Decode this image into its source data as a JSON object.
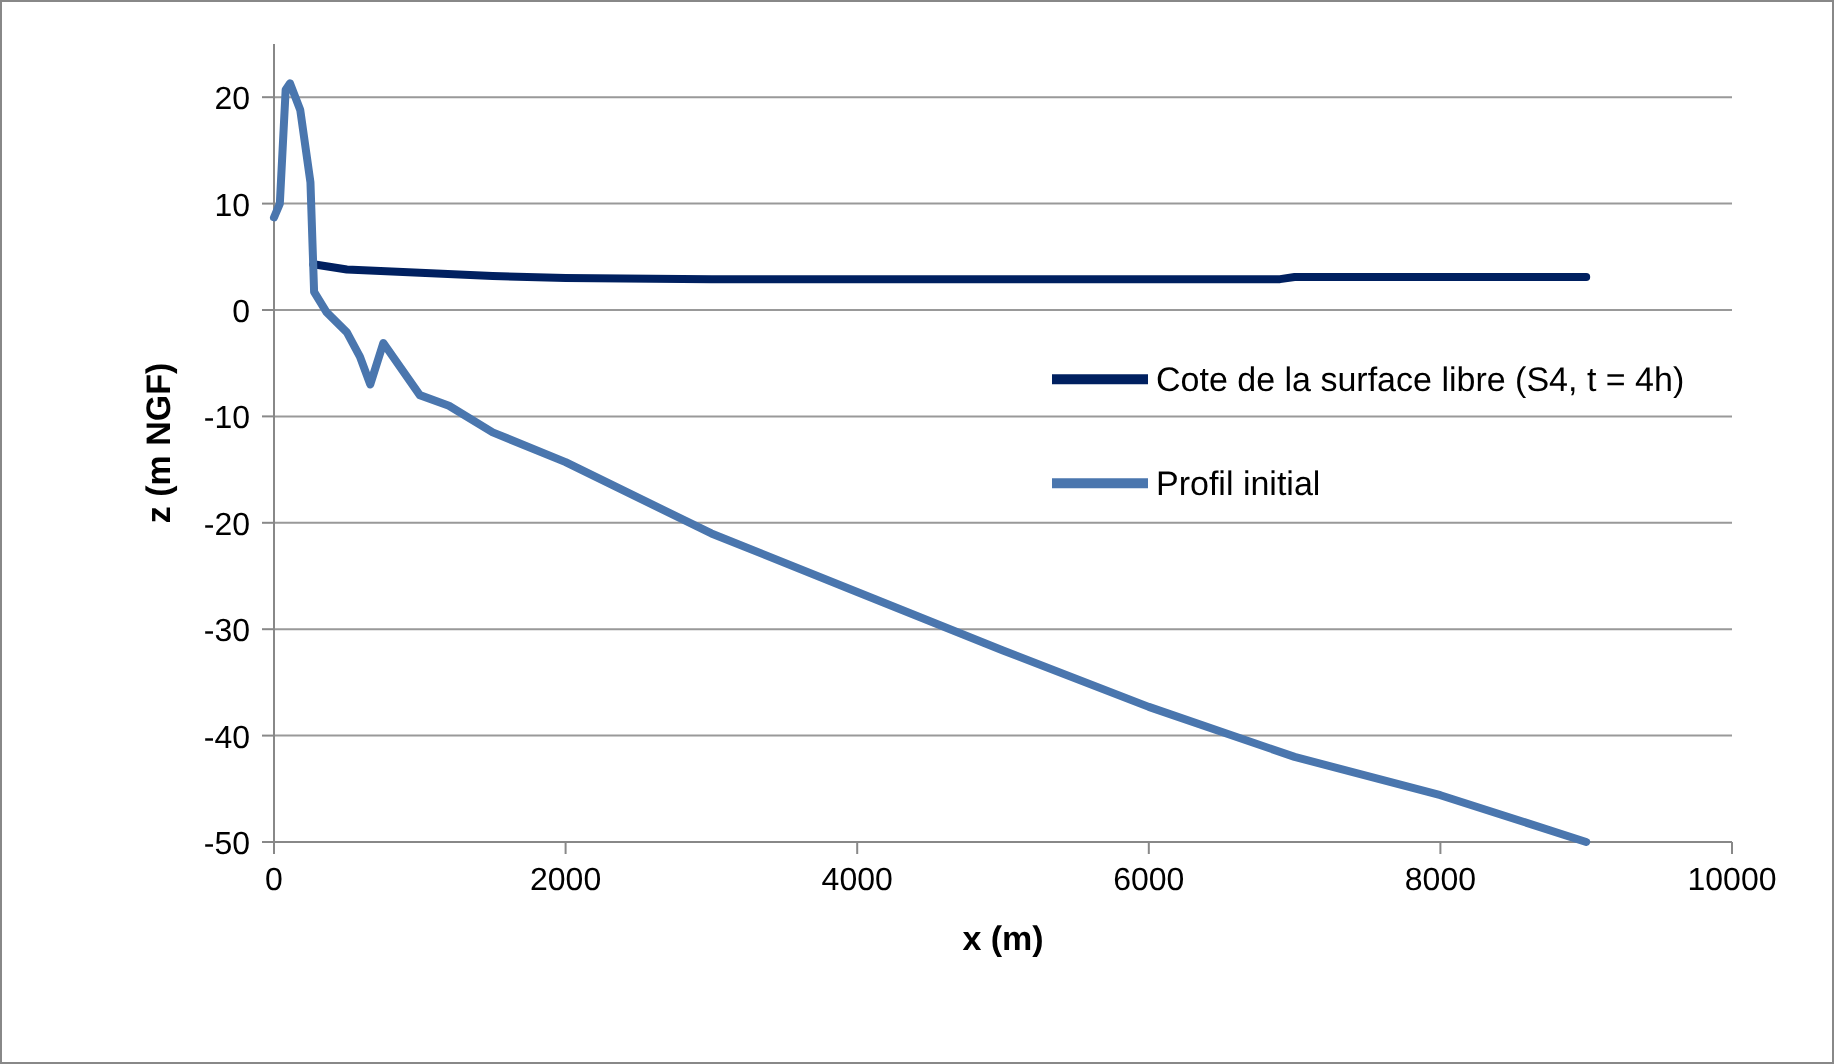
{
  "chart_data": {
    "type": "line",
    "xlabel": "x (m)",
    "ylabel": "z (m NGF)",
    "xlim": [
      0,
      10000
    ],
    "xticks": [
      0,
      2000,
      4000,
      6000,
      8000,
      10000
    ],
    "ylim": [
      -50,
      25
    ],
    "yticks": [
      -50,
      -40,
      -30,
      -20,
      -10,
      0,
      10,
      20
    ],
    "grid": "y",
    "legend": "right",
    "line_style": "solid",
    "marker": "none",
    "series": [
      {
        "name": "Cote de la surface libre (S4, t = 4h)",
        "color": "#002060",
        "x": [
          270,
          500,
          1000,
          1500,
          2000,
          3000,
          5000,
          6900,
          7000,
          9000
        ],
        "values": [
          4.3,
          3.8,
          3.5,
          3.2,
          3.0,
          2.9,
          2.9,
          2.9,
          3.1,
          3.1
        ]
      },
      {
        "name": "Profil initial",
        "color": "#4a76ae",
        "x": [
          0,
          40,
          80,
          110,
          180,
          250,
          275,
          360,
          500,
          590,
          660,
          750,
          1000,
          1200,
          1500,
          2000,
          3000,
          4000,
          5000,
          6000,
          7000,
          8000,
          9000
        ],
        "values": [
          8.7,
          10,
          20.7,
          21.3,
          18.8,
          12,
          1.7,
          -0.2,
          -2.1,
          -4.4,
          -7,
          -3.1,
          -8,
          -9,
          -11.5,
          -14.3,
          -21,
          -26.5,
          -32,
          -37.3,
          -42,
          -45.6,
          -50
        ]
      }
    ]
  }
}
